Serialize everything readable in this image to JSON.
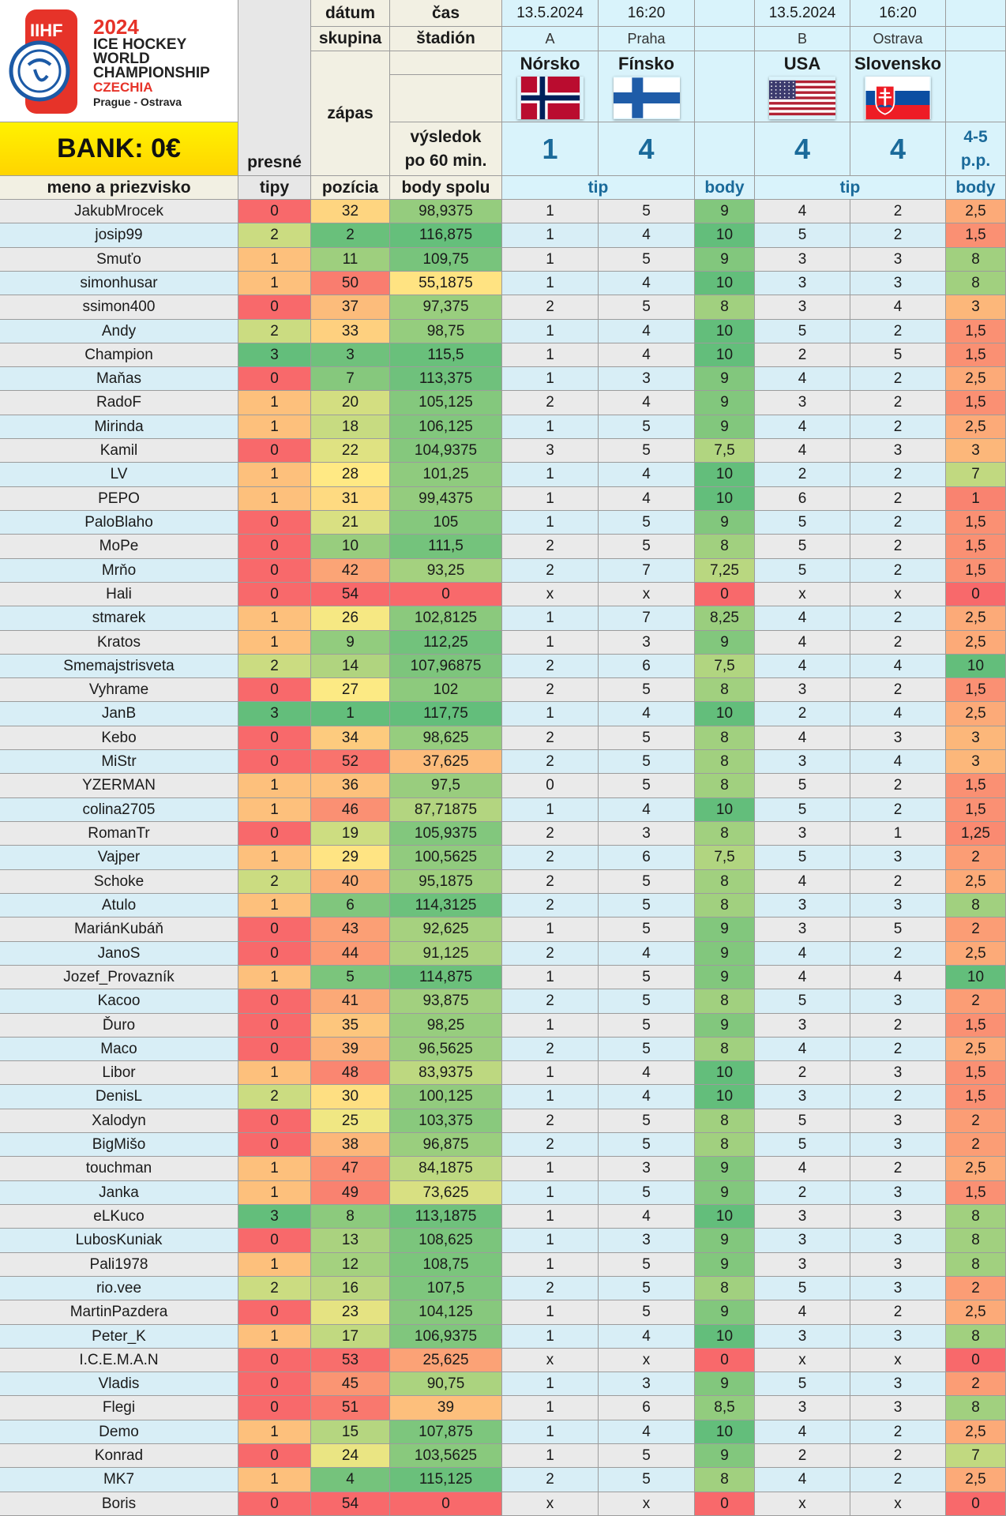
{
  "logo": {
    "brand": "IIHF",
    "year": "2024",
    "line1": "ICE HOCKEY",
    "line2": "WORLD",
    "line3": "CHAMPIONSHIP",
    "country": "CZECHIA",
    "cities": "Prague - Ostrava"
  },
  "bank": "BANK: 0€",
  "headers": {
    "datum": "dátum",
    "cas": "čas",
    "skupina": "skupina",
    "stadion": "štadión",
    "zapas": "zápas",
    "presne": "presné",
    "tipy": "tipy",
    "vysledok1": "výsledok",
    "vysledok2": "po 60 min.",
    "meno": "meno a priezvisko",
    "pozicia": "pozícia",
    "body_spolu": "body spolu",
    "tip": "tip",
    "body": "body"
  },
  "matches": [
    {
      "date": "13.5.2024",
      "time": "16:20",
      "group": "A",
      "venue": "Praha",
      "home": "Nórsko",
      "away": "Fínsko",
      "home_score": "1",
      "away_score": "4",
      "note1": "",
      "note2": ""
    },
    {
      "date": "13.5.2024",
      "time": "16:20",
      "group": "B",
      "venue": "Ostrava",
      "home": "USA",
      "away": "Slovensko",
      "home_score": "4",
      "away_score": "4",
      "note1": "4-5",
      "note2": "p.p."
    }
  ],
  "colors": {
    "header_cyan": "#d9f3fb",
    "bank_yellow": "#ffe600",
    "red": "#f8696b",
    "yellow": "#ffeb84",
    "green": "#63be7b"
  },
  "rows": [
    {
      "name": "JakubMrocek",
      "presne": "0",
      "poz": "32",
      "spolu": "98,9375",
      "t1h": "1",
      "t1a": "5",
      "b1": "9",
      "t2h": "4",
      "t2a": "2",
      "b2": "2,5"
    },
    {
      "name": "josip99",
      "presne": "2",
      "poz": "2",
      "spolu": "116,875",
      "t1h": "1",
      "t1a": "4",
      "b1": "10",
      "t2h": "5",
      "t2a": "2",
      "b2": "1,5"
    },
    {
      "name": "Smuťo",
      "presne": "1",
      "poz": "11",
      "spolu": "109,75",
      "t1h": "1",
      "t1a": "5",
      "b1": "9",
      "t2h": "3",
      "t2a": "3",
      "b2": "8"
    },
    {
      "name": "simonhusar",
      "presne": "1",
      "poz": "50",
      "spolu": "55,1875",
      "t1h": "1",
      "t1a": "4",
      "b1": "10",
      "t2h": "3",
      "t2a": "3",
      "b2": "8"
    },
    {
      "name": "ssimon400",
      "presne": "0",
      "poz": "37",
      "spolu": "97,375",
      "t1h": "2",
      "t1a": "5",
      "b1": "8",
      "t2h": "3",
      "t2a": "4",
      "b2": "3"
    },
    {
      "name": "Andy",
      "presne": "2",
      "poz": "33",
      "spolu": "98,75",
      "t1h": "1",
      "t1a": "4",
      "b1": "10",
      "t2h": "5",
      "t2a": "2",
      "b2": "1,5"
    },
    {
      "name": "Champion",
      "presne": "3",
      "poz": "3",
      "spolu": "115,5",
      "t1h": "1",
      "t1a": "4",
      "b1": "10",
      "t2h": "2",
      "t2a": "5",
      "b2": "1,5"
    },
    {
      "name": "Maňas",
      "presne": "0",
      "poz": "7",
      "spolu": "113,375",
      "t1h": "1",
      "t1a": "3",
      "b1": "9",
      "t2h": "4",
      "t2a": "2",
      "b2": "2,5"
    },
    {
      "name": "RadoF",
      "presne": "1",
      "poz": "20",
      "spolu": "105,125",
      "t1h": "2",
      "t1a": "4",
      "b1": "9",
      "t2h": "3",
      "t2a": "2",
      "b2": "1,5"
    },
    {
      "name": "Mirinda",
      "presne": "1",
      "poz": "18",
      "spolu": "106,125",
      "t1h": "1",
      "t1a": "5",
      "b1": "9",
      "t2h": "4",
      "t2a": "2",
      "b2": "2,5"
    },
    {
      "name": "Kamil",
      "presne": "0",
      "poz": "22",
      "spolu": "104,9375",
      "t1h": "3",
      "t1a": "5",
      "b1": "7,5",
      "t2h": "4",
      "t2a": "3",
      "b2": "3"
    },
    {
      "name": "LV",
      "presne": "1",
      "poz": "28",
      "spolu": "101,25",
      "t1h": "1",
      "t1a": "4",
      "b1": "10",
      "t2h": "2",
      "t2a": "2",
      "b2": "7"
    },
    {
      "name": "PEPO",
      "presne": "1",
      "poz": "31",
      "spolu": "99,4375",
      "t1h": "1",
      "t1a": "4",
      "b1": "10",
      "t2h": "6",
      "t2a": "2",
      "b2": "1"
    },
    {
      "name": "PaloBlaho",
      "presne": "0",
      "poz": "21",
      "spolu": "105",
      "t1h": "1",
      "t1a": "5",
      "b1": "9",
      "t2h": "5",
      "t2a": "2",
      "b2": "1,5"
    },
    {
      "name": "MoPe",
      "presne": "0",
      "poz": "10",
      "spolu": "111,5",
      "t1h": "2",
      "t1a": "5",
      "b1": "8",
      "t2h": "5",
      "t2a": "2",
      "b2": "1,5"
    },
    {
      "name": "Mrňo",
      "presne": "0",
      "poz": "42",
      "spolu": "93,25",
      "t1h": "2",
      "t1a": "7",
      "b1": "7,25",
      "t2h": "5",
      "t2a": "2",
      "b2": "1,5"
    },
    {
      "name": "Hali",
      "presne": "0",
      "poz": "54",
      "spolu": "0",
      "t1h": "x",
      "t1a": "x",
      "b1": "0",
      "t2h": "x",
      "t2a": "x",
      "b2": "0"
    },
    {
      "name": "stmarek",
      "presne": "1",
      "poz": "26",
      "spolu": "102,8125",
      "t1h": "1",
      "t1a": "7",
      "b1": "8,25",
      "t2h": "4",
      "t2a": "2",
      "b2": "2,5"
    },
    {
      "name": "Kratos",
      "presne": "1",
      "poz": "9",
      "spolu": "112,25",
      "t1h": "1",
      "t1a": "3",
      "b1": "9",
      "t2h": "4",
      "t2a": "2",
      "b2": "2,5"
    },
    {
      "name": "Smemajstrisveta",
      "presne": "2",
      "poz": "14",
      "spolu": "107,96875",
      "t1h": "2",
      "t1a": "6",
      "b1": "7,5",
      "t2h": "4",
      "t2a": "4",
      "b2": "10"
    },
    {
      "name": "Vyhrame",
      "presne": "0",
      "poz": "27",
      "spolu": "102",
      "t1h": "2",
      "t1a": "5",
      "b1": "8",
      "t2h": "3",
      "t2a": "2",
      "b2": "1,5"
    },
    {
      "name": "JanB",
      "presne": "3",
      "poz": "1",
      "spolu": "117,75",
      "t1h": "1",
      "t1a": "4",
      "b1": "10",
      "t2h": "2",
      "t2a": "4",
      "b2": "2,5"
    },
    {
      "name": "Kebo",
      "presne": "0",
      "poz": "34",
      "spolu": "98,625",
      "t1h": "2",
      "t1a": "5",
      "b1": "8",
      "t2h": "4",
      "t2a": "3",
      "b2": "3"
    },
    {
      "name": "MiStr",
      "presne": "0",
      "poz": "52",
      "spolu": "37,625",
      "t1h": "2",
      "t1a": "5",
      "b1": "8",
      "t2h": "3",
      "t2a": "4",
      "b2": "3"
    },
    {
      "name": "YZERMAN",
      "presne": "1",
      "poz": "36",
      "spolu": "97,5",
      "t1h": "0",
      "t1a": "5",
      "b1": "8",
      "t2h": "5",
      "t2a": "2",
      "b2": "1,5"
    },
    {
      "name": "colina2705",
      "presne": "1",
      "poz": "46",
      "spolu": "87,71875",
      "t1h": "1",
      "t1a": "4",
      "b1": "10",
      "t2h": "5",
      "t2a": "2",
      "b2": "1,5"
    },
    {
      "name": "RomanTr",
      "presne": "0",
      "poz": "19",
      "spolu": "105,9375",
      "t1h": "2",
      "t1a": "3",
      "b1": "8",
      "t2h": "3",
      "t2a": "1",
      "b2": "1,25"
    },
    {
      "name": "Vajper",
      "presne": "1",
      "poz": "29",
      "spolu": "100,5625",
      "t1h": "2",
      "t1a": "6",
      "b1": "7,5",
      "t2h": "5",
      "t2a": "3",
      "b2": "2"
    },
    {
      "name": "Schoke",
      "presne": "2",
      "poz": "40",
      "spolu": "95,1875",
      "t1h": "2",
      "t1a": "5",
      "b1": "8",
      "t2h": "4",
      "t2a": "2",
      "b2": "2,5"
    },
    {
      "name": "Atulo",
      "presne": "1",
      "poz": "6",
      "spolu": "114,3125",
      "t1h": "2",
      "t1a": "5",
      "b1": "8",
      "t2h": "3",
      "t2a": "3",
      "b2": "8"
    },
    {
      "name": "MariánKubáň",
      "presne": "0",
      "poz": "43",
      "spolu": "92,625",
      "t1h": "1",
      "t1a": "5",
      "b1": "9",
      "t2h": "3",
      "t2a": "5",
      "b2": "2"
    },
    {
      "name": "JanoS",
      "presne": "0",
      "poz": "44",
      "spolu": "91,125",
      "t1h": "2",
      "t1a": "4",
      "b1": "9",
      "t2h": "4",
      "t2a": "2",
      "b2": "2,5"
    },
    {
      "name": "Jozef_Provazník",
      "presne": "1",
      "poz": "5",
      "spolu": "114,875",
      "t1h": "1",
      "t1a": "5",
      "b1": "9",
      "t2h": "4",
      "t2a": "4",
      "b2": "10"
    },
    {
      "name": "Kacoo",
      "presne": "0",
      "poz": "41",
      "spolu": "93,875",
      "t1h": "2",
      "t1a": "5",
      "b1": "8",
      "t2h": "5",
      "t2a": "3",
      "b2": "2"
    },
    {
      "name": "Ďuro",
      "presne": "0",
      "poz": "35",
      "spolu": "98,25",
      "t1h": "1",
      "t1a": "5",
      "b1": "9",
      "t2h": "3",
      "t2a": "2",
      "b2": "1,5"
    },
    {
      "name": "Maco",
      "presne": "0",
      "poz": "39",
      "spolu": "96,5625",
      "t1h": "2",
      "t1a": "5",
      "b1": "8",
      "t2h": "4",
      "t2a": "2",
      "b2": "2,5"
    },
    {
      "name": "Libor",
      "presne": "1",
      "poz": "48",
      "spolu": "83,9375",
      "t1h": "1",
      "t1a": "4",
      "b1": "10",
      "t2h": "2",
      "t2a": "3",
      "b2": "1,5"
    },
    {
      "name": "DenisL",
      "presne": "2",
      "poz": "30",
      "spolu": "100,125",
      "t1h": "1",
      "t1a": "4",
      "b1": "10",
      "t2h": "3",
      "t2a": "2",
      "b2": "1,5"
    },
    {
      "name": "Xalodyn",
      "presne": "0",
      "poz": "25",
      "spolu": "103,375",
      "t1h": "2",
      "t1a": "5",
      "b1": "8",
      "t2h": "5",
      "t2a": "3",
      "b2": "2"
    },
    {
      "name": "BigMišo",
      "presne": "0",
      "poz": "38",
      "spolu": "96,875",
      "t1h": "2",
      "t1a": "5",
      "b1": "8",
      "t2h": "5",
      "t2a": "3",
      "b2": "2"
    },
    {
      "name": "touchman",
      "presne": "1",
      "poz": "47",
      "spolu": "84,1875",
      "t1h": "1",
      "t1a": "3",
      "b1": "9",
      "t2h": "4",
      "t2a": "2",
      "b2": "2,5"
    },
    {
      "name": "Janka",
      "presne": "1",
      "poz": "49",
      "spolu": "73,625",
      "t1h": "1",
      "t1a": "5",
      "b1": "9",
      "t2h": "2",
      "t2a": "3",
      "b2": "1,5"
    },
    {
      "name": "eLKuco",
      "presne": "3",
      "poz": "8",
      "spolu": "113,1875",
      "t1h": "1",
      "t1a": "4",
      "b1": "10",
      "t2h": "3",
      "t2a": "3",
      "b2": "8"
    },
    {
      "name": "LubosKuniak",
      "presne": "0",
      "poz": "13",
      "spolu": "108,625",
      "t1h": "1",
      "t1a": "3",
      "b1": "9",
      "t2h": "3",
      "t2a": "3",
      "b2": "8"
    },
    {
      "name": "Pali1978",
      "presne": "1",
      "poz": "12",
      "spolu": "108,75",
      "t1h": "1",
      "t1a": "5",
      "b1": "9",
      "t2h": "3",
      "t2a": "3",
      "b2": "8"
    },
    {
      "name": "rio.vee",
      "presne": "2",
      "poz": "16",
      "spolu": "107,5",
      "t1h": "2",
      "t1a": "5",
      "b1": "8",
      "t2h": "5",
      "t2a": "3",
      "b2": "2"
    },
    {
      "name": "MartinPazdera",
      "presne": "0",
      "poz": "23",
      "spolu": "104,125",
      "t1h": "1",
      "t1a": "5",
      "b1": "9",
      "t2h": "4",
      "t2a": "2",
      "b2": "2,5"
    },
    {
      "name": "Peter_K",
      "presne": "1",
      "poz": "17",
      "spolu": "106,9375",
      "t1h": "1",
      "t1a": "4",
      "b1": "10",
      "t2h": "3",
      "t2a": "3",
      "b2": "8"
    },
    {
      "name": "I.C.E.M.A.N",
      "presne": "0",
      "poz": "53",
      "spolu": "25,625",
      "t1h": "x",
      "t1a": "x",
      "b1": "0",
      "t2h": "x",
      "t2a": "x",
      "b2": "0"
    },
    {
      "name": "Vladis",
      "presne": "0",
      "poz": "45",
      "spolu": "90,75",
      "t1h": "1",
      "t1a": "3",
      "b1": "9",
      "t2h": "5",
      "t2a": "3",
      "b2": "2"
    },
    {
      "name": "Flegi",
      "presne": "0",
      "poz": "51",
      "spolu": "39",
      "t1h": "1",
      "t1a": "6",
      "b1": "8,5",
      "t2h": "3",
      "t2a": "3",
      "b2": "8"
    },
    {
      "name": "Demo",
      "presne": "1",
      "poz": "15",
      "spolu": "107,875",
      "t1h": "1",
      "t1a": "4",
      "b1": "10",
      "t2h": "4",
      "t2a": "2",
      "b2": "2,5"
    },
    {
      "name": "Konrad",
      "presne": "0",
      "poz": "24",
      "spolu": "103,5625",
      "t1h": "1",
      "t1a": "5",
      "b1": "9",
      "t2h": "2",
      "t2a": "2",
      "b2": "7"
    },
    {
      "name": "MK7",
      "presne": "1",
      "poz": "4",
      "spolu": "115,125",
      "t1h": "2",
      "t1a": "5",
      "b1": "8",
      "t2h": "4",
      "t2a": "2",
      "b2": "2,5"
    },
    {
      "name": "Boris",
      "presne": "0",
      "poz": "54",
      "spolu": "0",
      "t1h": "x",
      "t1a": "x",
      "b1": "0",
      "t2h": "x",
      "t2a": "x",
      "b2": "0"
    }
  ]
}
